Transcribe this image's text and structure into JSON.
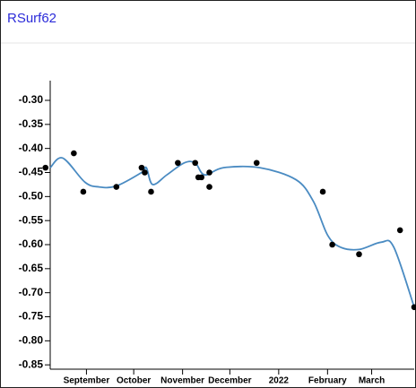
{
  "chart_data": {
    "type": "scatter",
    "title": "RSurf62",
    "series": [
      {
        "type": "scatter",
        "color": "#000000",
        "x": [
          "2021-08-06",
          "2021-08-24",
          "2021-08-30",
          "2021-09-20",
          "2021-10-06",
          "2021-10-08",
          "2021-10-12",
          "2021-10-29",
          "2021-11-09",
          "2021-11-11",
          "2021-11-13",
          "2021-11-18",
          "2021-11-18",
          "2021-12-18",
          "2022-01-29",
          "2022-02-04",
          "2022-02-21",
          "2022-03-19",
          "2022-03-28"
        ],
        "values": [
          -0.44,
          -0.41,
          -0.49,
          -0.48,
          -0.44,
          -0.45,
          -0.49,
          -0.43,
          -0.43,
          -0.46,
          -0.46,
          -0.45,
          -0.48,
          -0.43,
          -0.49,
          -0.6,
          -0.62,
          -0.57,
          -0.73
        ]
      },
      {
        "type": "line",
        "color": "#4a8bc2",
        "x": [
          "2021-08-09",
          "2021-08-17",
          "2021-08-31",
          "2021-09-09",
          "2021-09-20",
          "2021-10-06",
          "2021-10-09",
          "2021-10-13",
          "2021-10-22",
          "2021-11-02",
          "2021-11-09",
          "2021-11-15",
          "2021-11-27",
          "2021-12-20",
          "2022-01-12",
          "2022-01-23",
          "2022-02-01",
          "2022-02-09",
          "2022-02-21",
          "2022-03-07",
          "2022-03-15",
          "2022-03-28"
        ],
        "values": [
          -0.44,
          -0.42,
          -0.47,
          -0.48,
          -0.478,
          -0.45,
          -0.44,
          -0.475,
          -0.455,
          -0.43,
          -0.43,
          -0.455,
          -0.44,
          -0.44,
          -0.465,
          -0.51,
          -0.58,
          -0.605,
          -0.61,
          -0.595,
          -0.605,
          -0.73
        ]
      }
    ],
    "xlim": [
      "2021-08-09",
      "2022-03-28"
    ],
    "xticks": [
      {
        "value": "2021-09-01",
        "label": "September"
      },
      {
        "value": "2021-10-01",
        "label": "October"
      },
      {
        "value": "2021-11-01",
        "label": "November"
      },
      {
        "value": "2021-12-01",
        "label": "December"
      },
      {
        "value": "2022-01-01",
        "label": "2022"
      },
      {
        "value": "2022-02-01",
        "label": "February"
      },
      {
        "value": "2022-03-01",
        "label": "March"
      }
    ],
    "ylim": [
      -0.859,
      -0.259
    ],
    "yticks": [
      {
        "value": -0.3,
        "label": "-0.30"
      },
      -0.35,
      {
        "value": -0.4,
        "label": "-0.40"
      },
      -0.45,
      {
        "value": -0.5,
        "label": "-0.50"
      },
      -0.55,
      {
        "value": -0.6,
        "label": "-0.60"
      },
      -0.65,
      {
        "value": -0.7,
        "label": "-0.70"
      },
      -0.75,
      {
        "value": -0.8,
        "label": "-0.80"
      },
      -0.85
    ]
  }
}
